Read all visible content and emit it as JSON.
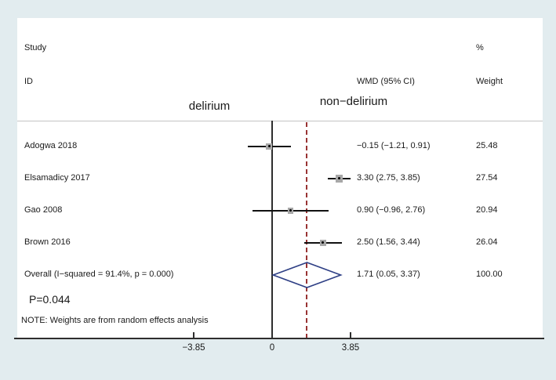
{
  "header": {
    "study": "Study",
    "id": "ID",
    "wmd_ci": "WMD (95% CI)",
    "percent": "%",
    "weight": "Weight"
  },
  "group_labels": {
    "left": "delirium",
    "right": "non−delirium"
  },
  "annotations": {
    "p_value": "P=0.044",
    "note": "NOTE: Weights are from random effects analysis"
  },
  "colors": {
    "background": "#e2ecef",
    "plot_background": "#ffffff",
    "axis": "#2e2e2e",
    "separator": "#c4c4c4",
    "zero_line": "#3c3c3c",
    "dashed_line": "#993333",
    "ci": "#111111",
    "marker_fill": "#a8a8a8",
    "diamond_stroke": "#2e3f85"
  },
  "chart_data": {
    "type": "forest",
    "title": "",
    "x_axis": {
      "ticks": [
        -3.85,
        0,
        3.85
      ],
      "tick_labels": [
        "−3.85",
        "0",
        "3.85"
      ],
      "zero_line_x": 0,
      "pooled_dashed_line_x": 1.71
    },
    "studies": [
      {
        "id": "Adogwa 2018",
        "wmd": -0.15,
        "ci_low": -1.21,
        "ci_high": 0.91,
        "wmd_label": "−0.15 (−1.21, 0.91)",
        "weight": 25.48,
        "weight_label": "25.48"
      },
      {
        "id": "Elsamadicy 2017",
        "wmd": 3.3,
        "ci_low": 2.75,
        "ci_high": 3.85,
        "wmd_label": "3.30 (2.75, 3.85)",
        "weight": 27.54,
        "weight_label": "27.54"
      },
      {
        "id": "Gao 2008",
        "wmd": 0.9,
        "ci_low": -0.96,
        "ci_high": 2.76,
        "wmd_label": "0.90 (−0.96, 2.76)",
        "weight": 20.94,
        "weight_label": "20.94"
      },
      {
        "id": "Brown 2016",
        "wmd": 2.5,
        "ci_low": 1.56,
        "ci_high": 3.44,
        "wmd_label": "2.50 (1.56, 3.44)",
        "weight": 26.04,
        "weight_label": "26.04"
      }
    ],
    "overall": {
      "id": "Overall  (I−squared = 91.4%, p = 0.000)",
      "wmd": 1.71,
      "ci_low": 0.05,
      "ci_high": 3.37,
      "wmd_label": "1.71 (0.05, 3.37)",
      "weight_label": "100.00"
    },
    "note": "NOTE: Weights are from random effects analysis",
    "heterogeneity_p": "P=0.044"
  }
}
